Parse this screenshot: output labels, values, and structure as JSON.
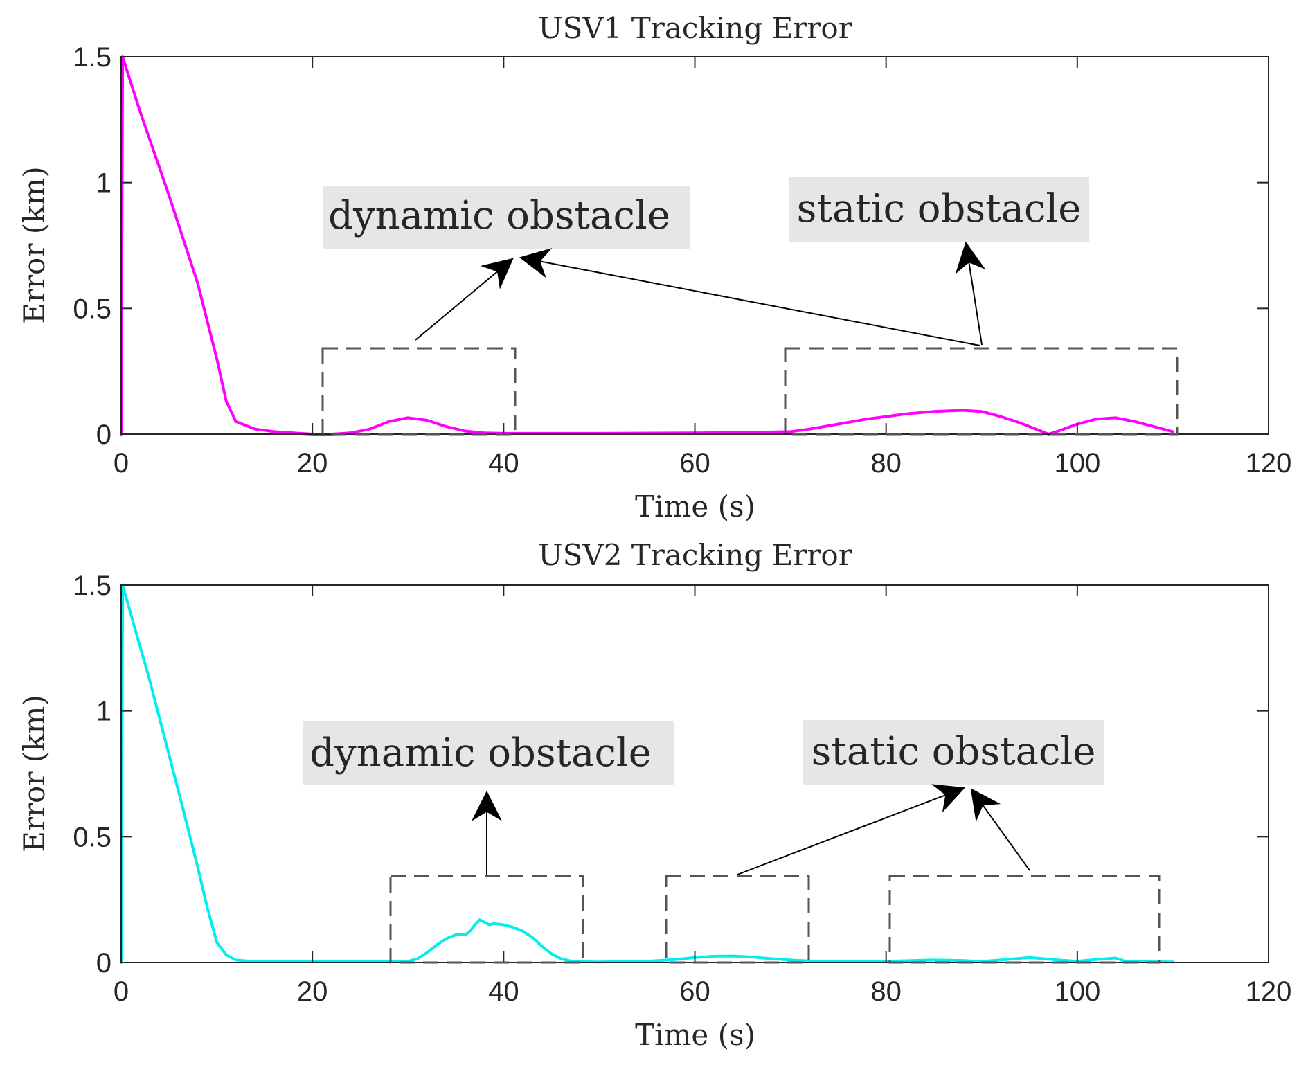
{
  "chart_data": [
    {
      "type": "line",
      "title": "USV1 Tracking Error",
      "xlabel": "Time (s)",
      "ylabel": "Error (km)",
      "xlim": [
        0,
        120
      ],
      "ylim": [
        0,
        1.5
      ],
      "xticks": [
        "0",
        "20",
        "40",
        "60",
        "80",
        "100",
        "120"
      ],
      "yticks": [
        "0",
        "0.5",
        "1",
        "1.5"
      ],
      "grid": false,
      "line_color": "#ff00ff",
      "series": [
        {
          "x": [
            0,
            0.15,
            2,
            5,
            8,
            10,
            11,
            12,
            14,
            16,
            18,
            20,
            22,
            24,
            26,
            28,
            30,
            32,
            34,
            36,
            38,
            40,
            45,
            50,
            60,
            65,
            70,
            72,
            75,
            78,
            80,
            82,
            85,
            88,
            90,
            92,
            94,
            96,
            97,
            98,
            100,
            102,
            104,
            106,
            108,
            110
          ],
          "y": [
            0,
            1.5,
            1.28,
            0.95,
            0.6,
            0.3,
            0.13,
            0.05,
            0.02,
            0.01,
            0.005,
            0.0,
            0.0,
            0.005,
            0.02,
            0.05,
            0.065,
            0.055,
            0.03,
            0.012,
            0.005,
            0.003,
            0.003,
            0.003,
            0.005,
            0.006,
            0.01,
            0.02,
            0.04,
            0.06,
            0.07,
            0.08,
            0.09,
            0.095,
            0.09,
            0.07,
            0.045,
            0.015,
            0.0,
            0.012,
            0.04,
            0.06,
            0.065,
            0.05,
            0.03,
            0.01
          ]
        }
      ],
      "annotations": [
        {
          "label": "dynamic obstacle"
        },
        {
          "label": "static obstacle"
        }
      ]
    },
    {
      "type": "line",
      "title": "USV2 Tracking Error",
      "xlabel": "Time (s)",
      "ylabel": "Error (km)",
      "xlim": [
        0,
        120
      ],
      "ylim": [
        0,
        1.5
      ],
      "xticks": [
        "0",
        "20",
        "40",
        "60",
        "80",
        "100",
        "120"
      ],
      "yticks": [
        "0",
        "0.5",
        "1",
        "1.5"
      ],
      "grid": false,
      "line_color": "#00eeee",
      "series": [
        {
          "x": [
            0,
            0.15,
            3,
            6,
            8,
            9,
            10,
            11,
            12,
            14,
            20,
            25,
            30,
            31,
            32,
            33,
            34,
            35,
            36,
            36.5,
            37,
            37.5,
            38,
            38.5,
            39,
            40,
            41,
            42,
            43,
            44,
            45,
            46,
            47,
            48,
            50,
            55,
            58,
            60,
            62,
            64,
            66,
            68,
            70,
            72,
            75,
            80,
            85,
            88,
            90,
            92,
            95,
            98,
            100,
            102,
            104,
            105,
            106,
            110
          ],
          "y": [
            0,
            1.5,
            1.12,
            0.68,
            0.38,
            0.22,
            0.08,
            0.03,
            0.01,
            0.003,
            0.003,
            0.003,
            0.005,
            0.015,
            0.04,
            0.07,
            0.095,
            0.11,
            0.11,
            0.125,
            0.15,
            0.17,
            0.16,
            0.15,
            0.155,
            0.15,
            0.14,
            0.125,
            0.1,
            0.065,
            0.035,
            0.015,
            0.006,
            0.003,
            0.002,
            0.005,
            0.012,
            0.02,
            0.025,
            0.026,
            0.022,
            0.015,
            0.01,
            0.006,
            0.004,
            0.005,
            0.01,
            0.008,
            0.004,
            0.01,
            0.02,
            0.01,
            0.005,
            0.012,
            0.018,
            0.005,
            0.003,
            0.002
          ]
        }
      ],
      "annotations": [
        {
          "label": "dynamic obstacle"
        },
        {
          "label": "static obstacle"
        }
      ]
    }
  ]
}
